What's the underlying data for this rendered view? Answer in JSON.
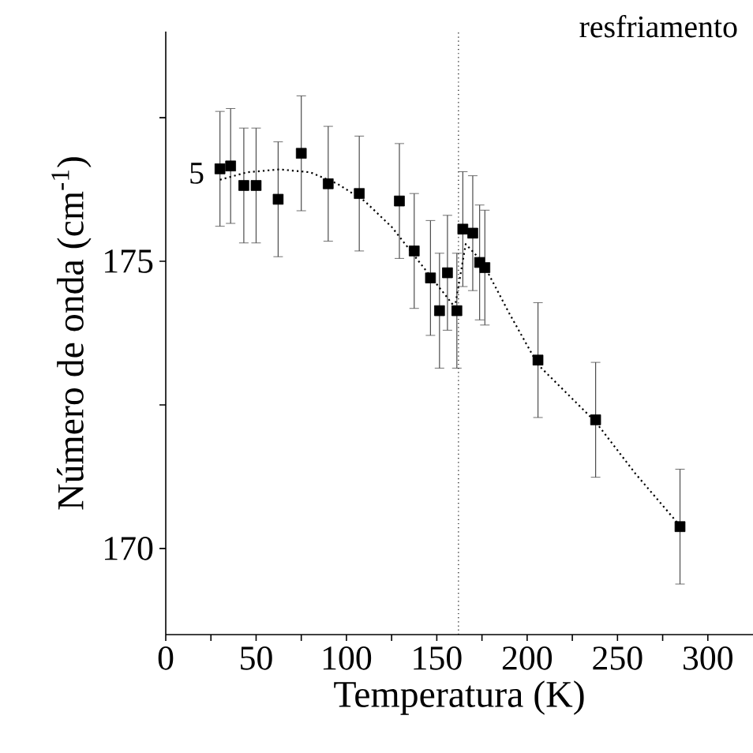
{
  "chart_data": {
    "type": "scatter",
    "xlabel": "Temperatura (K)",
    "ylabel": "Número de onda (cm$^{-1}$)",
    "annotations": [
      "resfriamento",
      "5"
    ],
    "xlim": [
      0,
      325
    ],
    "ylim": [
      168.5,
      179
    ],
    "xticks": [
      0,
      {
        "value": 25,
        "label": null
      },
      50,
      {
        "value": 75,
        "label": null
      },
      100,
      {
        "value": 125,
        "label": null
      },
      150,
      {
        "value": 175,
        "label": null
      },
      200,
      {
        "value": 225,
        "label": null
      },
      250,
      {
        "value": 275,
        "label": null
      },
      300
    ],
    "yticks": [
      170,
      {
        "value": 172.5,
        "label": null
      },
      175,
      {
        "value": 177.5,
        "label": null
      }
    ],
    "ref_lines": [
      {
        "axis": "x",
        "value": 162,
        "line_style": "dotted",
        "color": "#000000"
      }
    ],
    "series": [
      {
        "color": "#000000",
        "marker": "square",
        "x": [
          30.0,
          35.9,
          43.2,
          50.0,
          62.2,
          75.0,
          89.9,
          107.1,
          129.3,
          137.5,
          146.5,
          151.5,
          155.9,
          161.1,
          164.4,
          169.9,
          173.7,
          176.6,
          206.0,
          237.9,
          284.6
        ],
        "values": [
          176.61,
          176.66,
          176.32,
          176.32,
          176.08,
          176.88,
          176.35,
          176.18,
          176.05,
          175.18,
          174.71,
          174.14,
          174.8,
          174.14,
          175.56,
          175.49,
          174.98,
          174.89,
          173.28,
          172.24,
          170.38
        ],
        "errors": [
          1,
          1,
          1,
          1,
          1,
          1,
          1,
          1,
          1,
          1,
          1,
          1,
          1,
          1,
          1,
          1,
          1,
          1,
          1,
          1,
          1
        ]
      },
      {
        "type": "line",
        "color": "#000000",
        "line_style": "dotted",
        "marker": "none",
        "x": [
          30,
          45,
          63,
          80,
          95,
          110,
          125,
          140,
          150,
          160,
          166,
          175,
          190,
          206,
          222,
          238,
          260,
          285
        ],
        "values": [
          176.42,
          176.55,
          176.6,
          176.55,
          176.35,
          176.05,
          175.6,
          175.0,
          174.6,
          174.2,
          175.3,
          175.0,
          174.1,
          173.2,
          172.7,
          172.2,
          171.3,
          170.38
        ]
      }
    ]
  }
}
